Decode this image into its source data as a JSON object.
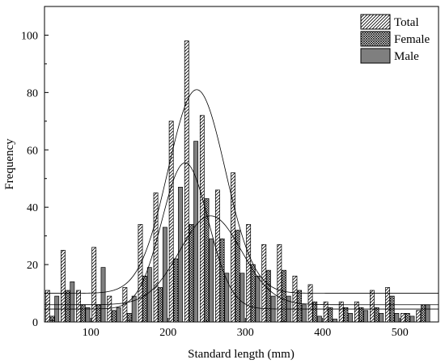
{
  "chart_data": {
    "type": "bar",
    "xlabel": "Standard length (mm)",
    "ylabel": "Frequency",
    "xlim": [
      40,
      550
    ],
    "ylim": [
      0,
      110
    ],
    "xticks": [
      100,
      200,
      300,
      400,
      500
    ],
    "yticks": [
      0,
      20,
      40,
      60,
      80,
      100
    ],
    "legend_position": "top-right",
    "grid": false,
    "categories": [
      50,
      70,
      90,
      110,
      130,
      150,
      170,
      190,
      210,
      230,
      250,
      270,
      290,
      310,
      330,
      350,
      370,
      390,
      410,
      430,
      450,
      470,
      490,
      510,
      530
    ],
    "series": [
      {
        "name": "Total",
        "pattern": "diagonal-hatch",
        "color": "#ffffff",
        "values": [
          11,
          25,
          11,
          26,
          9,
          12,
          34,
          45,
          70,
          98,
          72,
          46,
          52,
          34,
          27,
          27,
          16,
          13,
          7,
          7,
          7,
          11,
          12,
          3,
          4
        ]
      },
      {
        "name": "Female",
        "pattern": "crosshatch",
        "color": "#ffffff",
        "values": [
          2,
          11,
          6,
          6,
          4,
          3,
          16,
          12,
          22,
          34,
          43,
          29,
          32,
          20,
          18,
          18,
          11,
          7,
          5,
          5,
          5,
          5,
          9,
          3,
          6
        ]
      },
      {
        "name": "Male",
        "pattern": "solid",
        "color": "#7f7f7f",
        "values": [
          9,
          14,
          5,
          19,
          5,
          9,
          19,
          33,
          47,
          63,
          29,
          17,
          17,
          16,
          9,
          9,
          6,
          2,
          1,
          3,
          4,
          3,
          3,
          2,
          6
        ]
      }
    ],
    "fit_curves": [
      {
        "name": "Total",
        "mean": 237,
        "sd": 37,
        "amplitude": 71,
        "baseline": 10
      },
      {
        "name": "Female",
        "mean": 255,
        "sd": 40,
        "amplitude": 31,
        "baseline": 6
      },
      {
        "name": "Male",
        "mean": 222,
        "sd": 30,
        "amplitude": 51,
        "baseline": 4.5
      }
    ]
  }
}
